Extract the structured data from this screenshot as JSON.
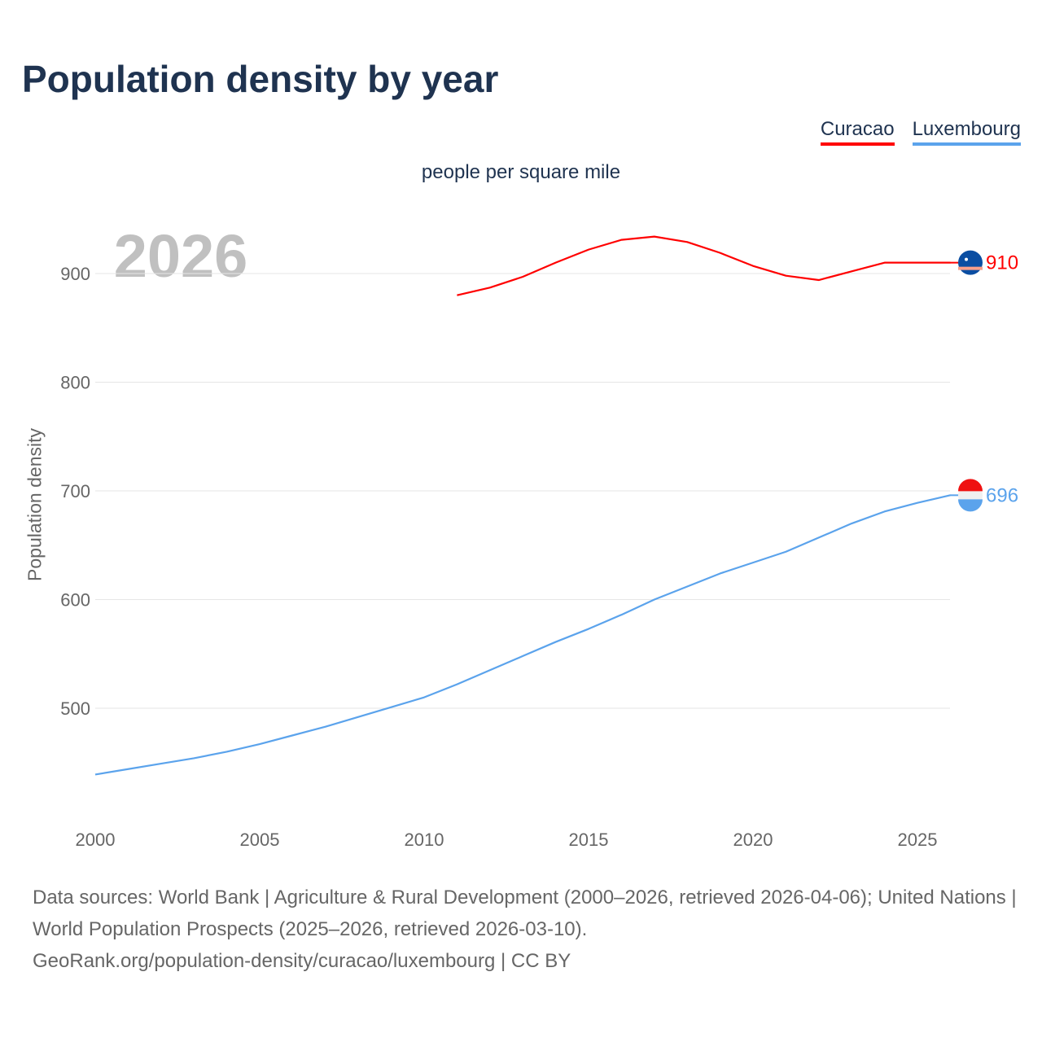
{
  "title": "Population density by year",
  "subtitle": "people per square mile",
  "year_watermark": "2026",
  "footer": {
    "line1": "Data sources: World Bank | Agriculture & Rural Development (2000–2026, retrieved 2026-04-06); United Nations | World Population Prospects (2025–2026, retrieved 2026-03-10).",
    "line2": "GeoRank.org/population-density/curacao/luxembourg | CC BY"
  },
  "chart_data": {
    "type": "line",
    "title": "Population density by year",
    "xlabel": "",
    "ylabel": "Population density",
    "xlim": [
      2000,
      2026
    ],
    "ylim": [
      400,
      960
    ],
    "x_ticks": [
      "2000",
      "2005",
      "2010",
      "2015",
      "2020",
      "2025"
    ],
    "y_ticks": [
      "500",
      "600",
      "700",
      "800",
      "900"
    ],
    "grid": true,
    "legend_position": "top-right",
    "series": [
      {
        "name": "Curacao",
        "color": "#ff0000",
        "end_label": "910",
        "x": [
          2011,
          2012,
          2013,
          2014,
          2015,
          2016,
          2017,
          2018,
          2019,
          2020,
          2021,
          2022,
          2023,
          2024,
          2025,
          2026
        ],
        "values": [
          880,
          887,
          897,
          910,
          922,
          931,
          934,
          929,
          919,
          907,
          898,
          894,
          902,
          910,
          910,
          910
        ]
      },
      {
        "name": "Luxembourg",
        "color": "#5ba3ec",
        "end_label": "696",
        "x": [
          2000,
          2001,
          2002,
          2003,
          2004,
          2005,
          2006,
          2007,
          2008,
          2009,
          2010,
          2011,
          2012,
          2013,
          2014,
          2015,
          2016,
          2017,
          2018,
          2019,
          2020,
          2021,
          2022,
          2023,
          2024,
          2025,
          2026
        ],
        "values": [
          439,
          444,
          449,
          454,
          460,
          467,
          475,
          483,
          492,
          501,
          510,
          522,
          535,
          548,
          561,
          573,
          586,
          600,
          612,
          624,
          634,
          644,
          657,
          670,
          681,
          689,
          696
        ]
      }
    ]
  }
}
